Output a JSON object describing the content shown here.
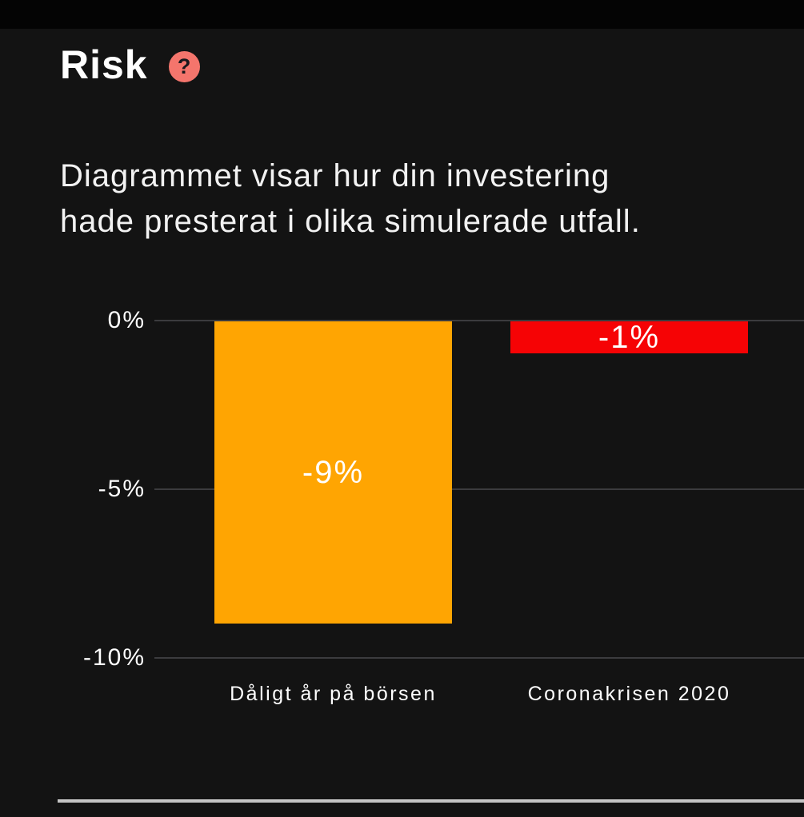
{
  "header": {
    "title": "Risk",
    "help_icon_glyph": "?",
    "description": "Diagrammet visar hur din investering\nhade presterat i olika simulerade utfall."
  },
  "chart_data": {
    "type": "bar",
    "title": "",
    "xlabel": "",
    "ylabel": "",
    "categories": [
      "Dåligt år på börsen",
      "Coronakrisen 2020"
    ],
    "values": [
      -9,
      -1
    ],
    "bar_labels": [
      "-9%",
      "-1%"
    ],
    "bar_colors": [
      "#ffa502",
      "#f60305"
    ],
    "yticks": [
      {
        "label": "0%",
        "value": 0
      },
      {
        "label": "-5%",
        "value": -5
      },
      {
        "label": "-10%",
        "value": -10
      }
    ],
    "ylim": [
      -10,
      0
    ],
    "grid": true,
    "legend": false
  },
  "colors": {
    "background": "#131313",
    "top_strip": "#040404",
    "gridline": "#3b3b3e",
    "divider": "#c2c2c2",
    "help_badge": "#f4756c",
    "text": "#ffffff"
  }
}
